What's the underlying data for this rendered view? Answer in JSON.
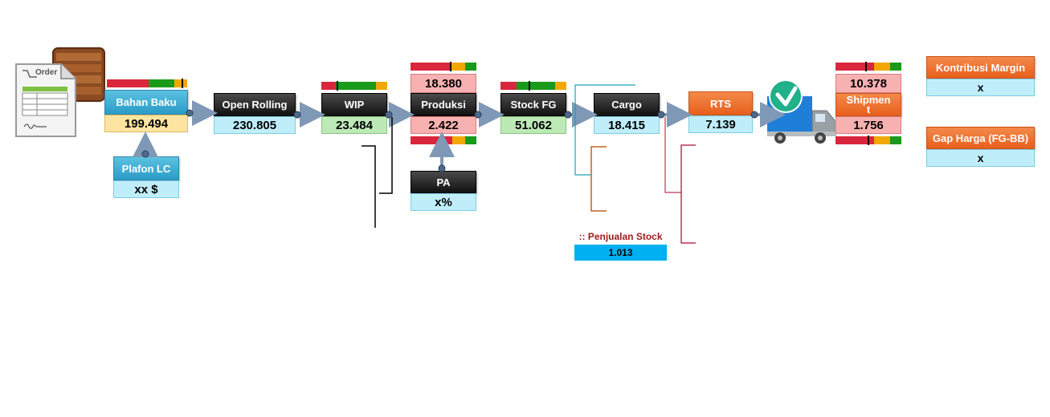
{
  "nodes": {
    "bahan_baku": {
      "label": "Bahan Baku",
      "value": "199.494"
    },
    "plafon_lc": {
      "label": "Plafon LC",
      "value": "xx $"
    },
    "open_rolling": {
      "label": "Open Rolling",
      "value": "230.805"
    },
    "wip": {
      "label": "WIP",
      "value": "23.484"
    },
    "produksi": {
      "label": "Produksi",
      "value": "2.422",
      "top_value": "18.380"
    },
    "pa": {
      "label": "PA",
      "value": "x%"
    },
    "stock_fg": {
      "label": "Stock FG",
      "value": "51.062"
    },
    "cargo": {
      "label": "Cargo",
      "value": "18.415"
    },
    "rts": {
      "label": "RTS",
      "value": "7.139"
    },
    "shipment": {
      "label": "Shipmen\nt",
      "value": "1.756",
      "top_value": "10.378"
    }
  },
  "side": {
    "kontribusi": {
      "label": "Kontribusi Margin",
      "value": "x"
    },
    "gap_harga": {
      "label": "Gap Harga (FG-BB)",
      "value": "x"
    }
  },
  "penjualan": {
    "label": ":: Penjualan Stock",
    "value": "1.013"
  },
  "order_icon": {
    "text": "Order"
  },
  "colors": {
    "red": "#d9263c",
    "green": "#1a9a1a",
    "amber": "#f0a800",
    "cyan": "#00b0f0",
    "dark_red": "#9e1a1a"
  },
  "icons": [
    "order-document-icon",
    "wooden-crate-icon",
    "delivery-truck-icon",
    "check-badge-icon"
  ]
}
